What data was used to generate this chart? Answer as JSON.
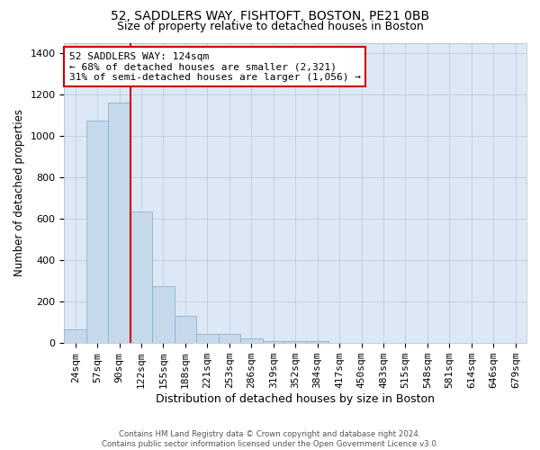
{
  "title1": "52, SADDLERS WAY, FISHTOFT, BOSTON, PE21 0BB",
  "title2": "Size of property relative to detached houses in Boston",
  "xlabel": "Distribution of detached houses by size in Boston",
  "ylabel": "Number of detached properties",
  "categories": [
    "24sqm",
    "57sqm",
    "90sqm",
    "122sqm",
    "155sqm",
    "188sqm",
    "221sqm",
    "253sqm",
    "286sqm",
    "319sqm",
    "352sqm",
    "384sqm",
    "417sqm",
    "450sqm",
    "483sqm",
    "515sqm",
    "548sqm",
    "581sqm",
    "614sqm",
    "646sqm",
    "679sqm"
  ],
  "values": [
    65,
    1075,
    1160,
    635,
    275,
    130,
    45,
    45,
    22,
    10,
    10,
    10,
    0,
    0,
    0,
    0,
    0,
    0,
    0,
    0,
    0
  ],
  "bar_color": "#c5d9eb",
  "bar_edge_color": "#8ab4ce",
  "vline_index": 2.5,
  "annotation_text": "52 SADDLERS WAY: 124sqm\n← 68% of detached houses are smaller (2,321)\n31% of semi-detached houses are larger (1,056) →",
  "annotation_box_facecolor": "#ffffff",
  "annotation_border_color": "#cc0000",
  "vline_color": "#cc0000",
  "plot_bg_color": "#dce8f5",
  "ylim": [
    0,
    1450
  ],
  "yticks": [
    0,
    200,
    400,
    600,
    800,
    1000,
    1200,
    1400
  ],
  "title1_fontsize": 10,
  "title2_fontsize": 9,
  "xlabel_fontsize": 9,
  "ylabel_fontsize": 8.5,
  "tick_fontsize": 8,
  "footer_text": "Contains HM Land Registry data © Crown copyright and database right 2024.\nContains public sector information licensed under the Open Government Licence v3.0."
}
